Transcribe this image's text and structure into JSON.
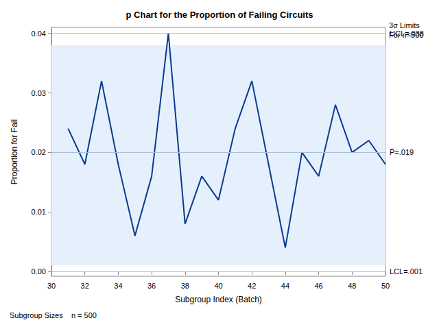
{
  "chart_data": {
    "type": "line",
    "title": "p Chart for the Proportion of Failing Circuits",
    "x_label": "Subgroup Index (Batch)",
    "y_label": "Proportion for Fail",
    "x": [
      31,
      32,
      33,
      34,
      35,
      36,
      37,
      38,
      39,
      40,
      41,
      42,
      43,
      44,
      45,
      46,
      47,
      48,
      49,
      50
    ],
    "values": [
      0.024,
      0.018,
      0.032,
      0.018,
      0.006,
      0.016,
      0.04,
      0.008,
      0.016,
      0.012,
      0.024,
      0.032,
      0.018,
      0.004,
      0.02,
      0.016,
      0.028,
      0.02,
      0.022,
      0.018
    ],
    "color": "#0b3a8f",
    "marker": "none",
    "xlim": [
      30,
      50
    ],
    "xticks": [
      30,
      32,
      34,
      36,
      38,
      40,
      42,
      44,
      46,
      48,
      50
    ],
    "ylim": [
      -0.0008,
      0.041
    ],
    "yticks": [
      {
        "value": 0,
        "label": "0.00"
      },
      {
        "value": 0.01,
        "label": "0.01"
      },
      {
        "value": 0.02,
        "label": "0.02"
      },
      {
        "value": 0.03,
        "label": "0.03"
      },
      {
        "value": 0.04,
        "label": "0.04"
      }
    ],
    "grid": false,
    "limits": [
      {
        "label": "UCL=.038",
        "value": 0.038
      },
      {
        "label": "P̄=.019",
        "value": 0.0194
      },
      {
        "label": "LCL=.001",
        "value": 0.001
      }
    ],
    "limits_note": [
      "3σ Limits",
      "For n=500"
    ],
    "footnote": "Subgroup Sizes    n = 500"
  }
}
